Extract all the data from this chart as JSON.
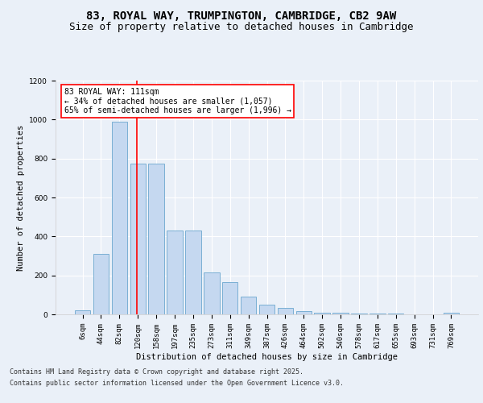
{
  "title_line1": "83, ROYAL WAY, TRUMPINGTON, CAMBRIDGE, CB2 9AW",
  "title_line2": "Size of property relative to detached houses in Cambridge",
  "xlabel": "Distribution of detached houses by size in Cambridge",
  "ylabel": "Number of detached properties",
  "categories": [
    "6sqm",
    "44sqm",
    "82sqm",
    "120sqm",
    "158sqm",
    "197sqm",
    "235sqm",
    "273sqm",
    "311sqm",
    "349sqm",
    "387sqm",
    "426sqm",
    "464sqm",
    "502sqm",
    "540sqm",
    "578sqm",
    "617sqm",
    "655sqm",
    "693sqm",
    "731sqm",
    "769sqm"
  ],
  "values": [
    22,
    310,
    990,
    775,
    775,
    430,
    430,
    215,
    165,
    90,
    50,
    33,
    18,
    10,
    8,
    5,
    3,
    3,
    2,
    2,
    8
  ],
  "bar_color": "#c5d8f0",
  "bar_edge_color": "#7aafd4",
  "vline_color": "red",
  "annotation_text": "83 ROYAL WAY: 111sqm\n← 34% of detached houses are smaller (1,057)\n65% of semi-detached houses are larger (1,996) →",
  "annotation_box_color": "white",
  "annotation_box_edge": "red",
  "ylim": [
    0,
    1200
  ],
  "yticks": [
    0,
    200,
    400,
    600,
    800,
    1000,
    1200
  ],
  "bg_color": "#eaf0f8",
  "plot_bg_color": "#eaf0f8",
  "footer_line1": "Contains HM Land Registry data © Crown copyright and database right 2025.",
  "footer_line2": "Contains public sector information licensed under the Open Government Licence v3.0.",
  "title_fontsize": 10,
  "subtitle_fontsize": 9,
  "axis_label_fontsize": 7.5,
  "tick_fontsize": 6.5,
  "annotation_fontsize": 7,
  "footer_fontsize": 6
}
